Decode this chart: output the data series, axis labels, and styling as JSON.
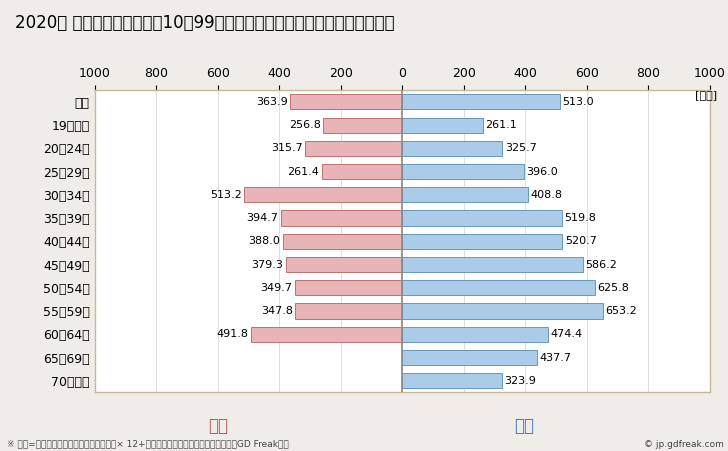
{
  "title": "2020年 民間企業（従業者数10～99人）フルタイム労働者の男女別平均年収",
  "unit_label": "[万円]",
  "categories": [
    "全体",
    "19歳以下",
    "20～24歳",
    "25～29歳",
    "30～34歳",
    "35～39歳",
    "40～44歳",
    "45～49歳",
    "50～54歳",
    "55～59歳",
    "60～64歳",
    "65～69歳",
    "70歳以上"
  ],
  "female_values": [
    363.9,
    256.8,
    315.7,
    261.4,
    513.2,
    394.7,
    388.0,
    379.3,
    349.7,
    347.8,
    491.8,
    0,
    0
  ],
  "male_values": [
    513.0,
    261.1,
    325.7,
    396.0,
    408.8,
    519.8,
    520.7,
    586.2,
    625.8,
    653.2,
    474.4,
    437.7,
    323.9
  ],
  "female_color": "#e8b4b8",
  "female_edge_color": "#c07070",
  "male_color": "#aacce8",
  "male_edge_color": "#6699bb",
  "female_label": "女性",
  "male_label": "男性",
  "female_label_color": "#c0504d",
  "male_label_color": "#4472c4",
  "xlim": [
    -1000,
    1000
  ],
  "xticks": [
    -1000,
    -800,
    -600,
    -400,
    -200,
    0,
    200,
    400,
    600,
    800,
    1000
  ],
  "xtick_labels": [
    "1000",
    "800",
    "600",
    "400",
    "200",
    "0",
    "200",
    "400",
    "600",
    "800",
    "1000"
  ],
  "background_color": "#f0ede8",
  "plot_bg_color": "#ffffff",
  "title_fontsize": 12,
  "axis_fontsize": 9,
  "bar_label_fontsize": 8,
  "legend_fontsize": 12,
  "footer_text": "※ 年収=「きまって支給する現金給与額」× 12+「年間賞与その他特別給与額」としてGD Freak推計",
  "watermark": "© jp.gdfreak.com",
  "border_color": "#c8b89a",
  "grid_color": "#dddddd",
  "zero_line_color": "#888888"
}
